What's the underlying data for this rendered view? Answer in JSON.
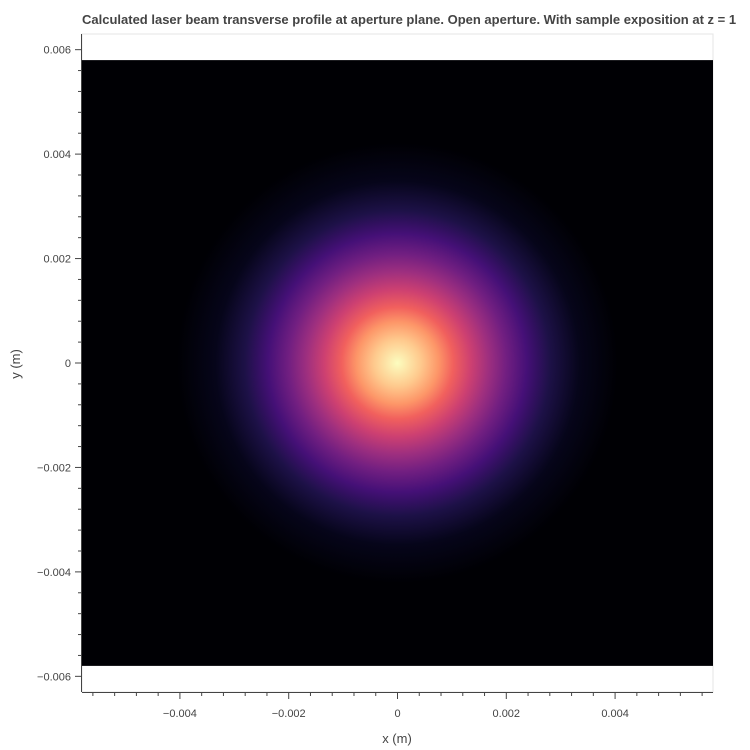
{
  "chart_data": {
    "type": "heatmap",
    "title": "Calculated laser beam transverse profile at aperture plane. Open aperture. With sample exposition at z = 1",
    "xlabel": "x (m)",
    "ylabel": "y (m)",
    "xlim": [
      -0.0058,
      0.0058
    ],
    "ylim": [
      -0.0063,
      0.0063
    ],
    "image_extent": {
      "x": [
        -0.0058,
        0.0058
      ],
      "y": [
        -0.0058,
        0.0058
      ]
    },
    "x_ticks": [
      {
        "value": -0.004,
        "label": "−0.004"
      },
      {
        "value": -0.002,
        "label": "−0.002"
      },
      {
        "value": 0,
        "label": "0"
      },
      {
        "value": 0.002,
        "label": "0.002"
      },
      {
        "value": 0.004,
        "label": "0.004"
      }
    ],
    "y_ticks": [
      {
        "value": 0.006,
        "label": "0.006"
      },
      {
        "value": 0.004,
        "label": "0.004"
      },
      {
        "value": 0.002,
        "label": "0.002"
      },
      {
        "value": 0,
        "label": "0"
      },
      {
        "value": -0.002,
        "label": "−0.002"
      },
      {
        "value": -0.004,
        "label": "−0.004"
      },
      {
        "value": -0.006,
        "label": "−0.006"
      }
    ],
    "beam": {
      "center": [
        0,
        0
      ],
      "gaussian_sigma_m": 0.0012
    },
    "colormap": "magma",
    "grid": false,
    "legend": "none",
    "colors": {
      "background": "#ffffff",
      "axis": "#444444",
      "low": "#000004",
      "high": "#fcfdbf"
    }
  }
}
